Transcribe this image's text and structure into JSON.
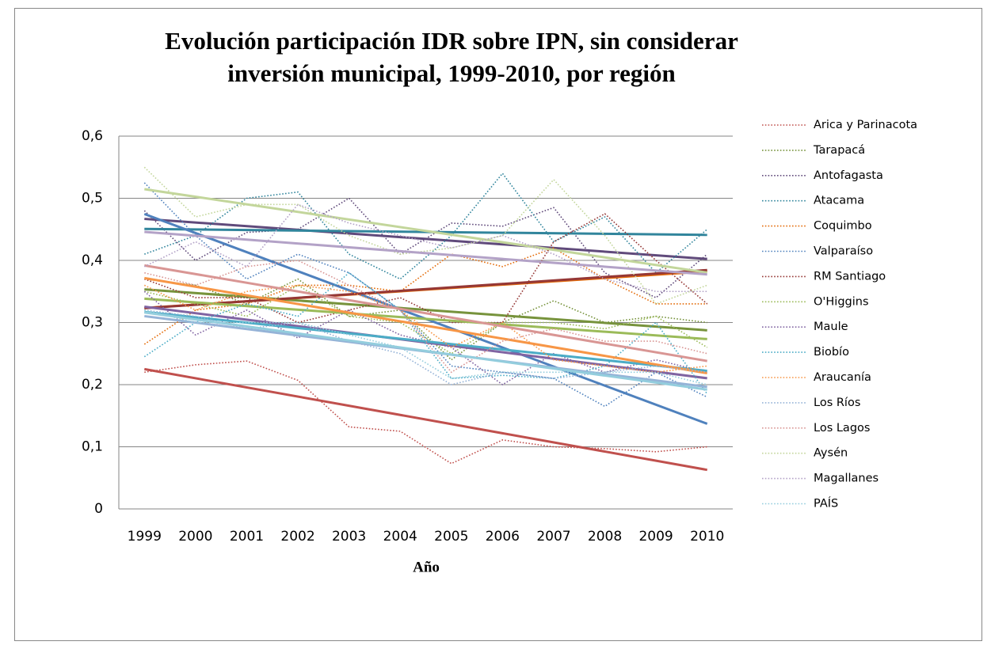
{
  "chart_data": {
    "type": "line",
    "title": [
      "Evolución participación IDR sobre IPN, sin considerar",
      "inversión municipal, 1999-2010,  por región"
    ],
    "x_label": "Año",
    "categories": [
      "1999",
      "2000",
      "2001",
      "2002",
      "2003",
      "2004",
      "2005",
      "2006",
      "2007",
      "2008",
      "2009",
      "2010"
    ],
    "ylim": [
      0,
      0.6
    ],
    "yticks": [
      0,
      {
        "value": 0.1,
        "label": "0,1"
      },
      {
        "value": 0.2,
        "label": "0,2"
      },
      {
        "value": 0.3,
        "label": "0,3"
      },
      {
        "value": 0.4,
        "label": "0,4"
      },
      {
        "value": 0.5,
        "label": "0,5"
      },
      {
        "value": 0.6,
        "label": "0,6"
      }
    ],
    "grid": true,
    "trendlines": true,
    "legend": "right",
    "series": [
      {
        "name": "Arica y Parinacota",
        "color": "#c0504d",
        "values": [
          0.22,
          0.232,
          0.238,
          0.207,
          0.132,
          0.125,
          0.073,
          0.111,
          0.1,
          0.097,
          0.092,
          0.1
        ]
      },
      {
        "name": "Tarapacá",
        "color": "#77933c",
        "values": [
          0.37,
          0.36,
          0.33,
          0.37,
          0.31,
          0.32,
          0.24,
          0.3,
          0.335,
          0.3,
          0.31,
          0.3
        ]
      },
      {
        "name": "Antofagasta",
        "color": "#604a7b",
        "values": [
          0.48,
          0.4,
          0.445,
          0.45,
          0.5,
          0.41,
          0.46,
          0.455,
          0.485,
          0.38,
          0.34,
          0.41
        ]
      },
      {
        "name": "Atacama",
        "color": "#31859c",
        "values": [
          0.41,
          0.44,
          0.5,
          0.51,
          0.41,
          0.37,
          0.44,
          0.54,
          0.43,
          0.47,
          0.38,
          0.45
        ]
      },
      {
        "name": "Coquimbo",
        "color": "#e46c0a",
        "values": [
          0.265,
          0.32,
          0.33,
          0.36,
          0.36,
          0.35,
          0.41,
          0.39,
          0.42,
          0.37,
          0.33,
          0.33
        ]
      },
      {
        "name": "Valparaíso",
        "color": "#4f81bd",
        "values": [
          0.525,
          0.44,
          0.37,
          0.41,
          0.38,
          0.32,
          0.23,
          0.22,
          0.21,
          0.165,
          0.22,
          0.18
        ]
      },
      {
        "name": "RM Santiago",
        "color": "#953735",
        "values": [
          0.37,
          0.34,
          0.34,
          0.3,
          0.32,
          0.34,
          0.3,
          0.3,
          0.43,
          0.475,
          0.4,
          0.33
        ]
      },
      {
        "name": "O'Higgins",
        "color": "#9bbb59",
        "values": [
          0.35,
          0.33,
          0.31,
          0.36,
          0.31,
          0.3,
          0.25,
          0.3,
          0.3,
          0.29,
          0.31,
          0.26
        ]
      },
      {
        "name": "Maule",
        "color": "#8064a2",
        "values": [
          0.35,
          0.28,
          0.32,
          0.275,
          0.32,
          0.28,
          0.26,
          0.2,
          0.25,
          0.22,
          0.24,
          0.22
        ]
      },
      {
        "name": "Biobío",
        "color": "#4bacc6",
        "values": [
          0.245,
          0.3,
          0.33,
          0.31,
          0.38,
          0.32,
          0.21,
          0.215,
          0.21,
          0.23,
          0.3,
          0.185
        ]
      },
      {
        "name": "Araucanía",
        "color": "#f79646",
        "values": [
          0.36,
          0.32,
          0.35,
          0.36,
          0.35,
          0.32,
          0.26,
          0.3,
          0.24,
          0.23,
          0.22,
          0.23
        ]
      },
      {
        "name": "Los Ríos",
        "color": "#95b3d7",
        "values": [
          0.32,
          0.31,
          0.29,
          0.3,
          0.27,
          0.25,
          0.2,
          0.22,
          0.21,
          0.22,
          0.23,
          0.22
        ]
      },
      {
        "name": "Los Lagos",
        "color": "#d99694",
        "values": [
          0.38,
          0.36,
          0.39,
          0.4,
          0.36,
          0.32,
          0.22,
          0.27,
          0.29,
          0.27,
          0.27,
          0.25
        ]
      },
      {
        "name": "Aysén",
        "color": "#c3d69b",
        "values": [
          0.55,
          0.47,
          0.49,
          0.49,
          0.44,
          0.41,
          0.42,
          0.44,
          0.53,
          0.44,
          0.33,
          0.36
        ]
      },
      {
        "name": "Magallanes",
        "color": "#b3a2c7",
        "values": [
          0.39,
          0.43,
          0.39,
          0.49,
          0.46,
          0.44,
          0.42,
          0.44,
          0.41,
          0.37,
          0.35,
          0.35
        ]
      },
      {
        "name": "PAÍS",
        "color": "#93cddd",
        "values": [
          0.32,
          0.3,
          0.3,
          0.3,
          0.28,
          0.26,
          0.21,
          0.22,
          0.22,
          0.22,
          0.22,
          0.2
        ]
      }
    ]
  }
}
